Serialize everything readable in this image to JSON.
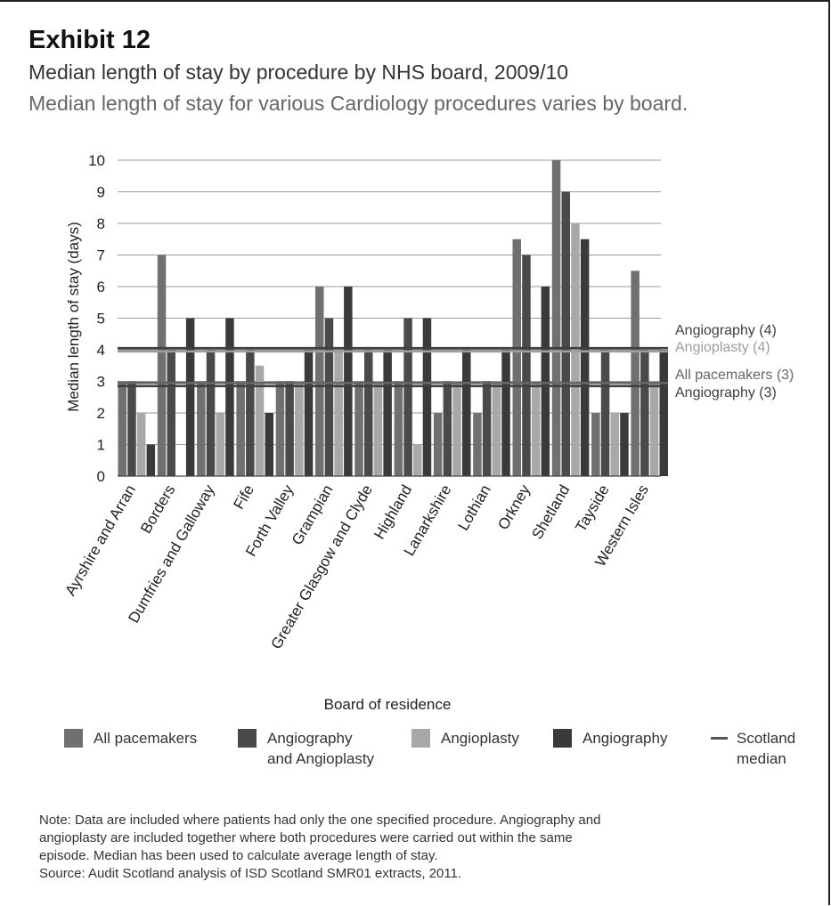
{
  "exhibit_label": "Exhibit 12",
  "title": "Median length of stay by procedure by NHS board, 2009/10",
  "subtitle": "Median length of stay for various Cardiology procedures varies by board.",
  "colors": {
    "all_pacemakers": "#707070",
    "angiography_and_angioplasty": "#4a4a4a",
    "angioplasty": "#a8a8a8",
    "angiography": "#3a3a3a",
    "scotland_median": "#555555",
    "grid": "#9a9a9a"
  },
  "chart_data": {
    "type": "bar",
    "xlabel": "Board of residence",
    "ylabel": "Median length of stay (days)",
    "ylim": [
      0,
      10
    ],
    "yticks": [
      "0",
      "1",
      "2",
      "3",
      "4",
      "5",
      "6",
      "7",
      "8",
      "9",
      "10"
    ],
    "grid": true,
    "legend_position": "bottom",
    "categories": [
      "Ayrshire and Arran",
      "Borders",
      "Dumfries and Galloway",
      "Fife",
      "Forth Valley",
      "Grampian",
      "Greater Glasgow and Clyde",
      "Highland",
      "Lanarkshire",
      "Lothian",
      "Orkney",
      "Shetland",
      "Tayside",
      "Western Isles"
    ],
    "series": [
      {
        "name": "All pacemakers",
        "color_key": "all_pacemakers",
        "values": [
          3,
          7,
          3,
          3,
          3,
          6,
          3,
          3,
          2,
          2,
          7.5,
          10,
          2,
          6.5
        ]
      },
      {
        "name": "Angiography and Angioplasty",
        "color_key": "angiography_and_angioplasty",
        "values": [
          3,
          4,
          4,
          4,
          3,
          5,
          4,
          5,
          3,
          3,
          7,
          9,
          4,
          4
        ]
      },
      {
        "name": "Angioplasty",
        "color_key": "angioplasty",
        "values": [
          2,
          null,
          2,
          3.5,
          3,
          4,
          3,
          1,
          3,
          3,
          3,
          8,
          2,
          3
        ]
      },
      {
        "name": "Angiography",
        "color_key": "angiography",
        "values": [
          1,
          5,
          5,
          2,
          4,
          6,
          4,
          5,
          4,
          4,
          6,
          7.5,
          2,
          4
        ]
      }
    ],
    "reference_lines": [
      {
        "label": "Angiography (4)",
        "value": 4.05,
        "tone": "dark"
      },
      {
        "label": "Angioplasty (4)",
        "value": 3.95,
        "tone": "light"
      },
      {
        "label": "All pacemakers (3)",
        "value": 2.95,
        "tone": "mid"
      },
      {
        "label": "Angiography (3)",
        "value": 2.85,
        "tone": "dark"
      }
    ]
  },
  "legend": {
    "items": [
      {
        "label_lines": [
          "All pacemakers"
        ],
        "color_key": "all_pacemakers",
        "kind": "box"
      },
      {
        "label_lines": [
          "Angiography",
          "and Angioplasty"
        ],
        "color_key": "angiography_and_angioplasty",
        "kind": "box"
      },
      {
        "label_lines": [
          "Angioplasty"
        ],
        "color_key": "angioplasty",
        "kind": "box"
      },
      {
        "label_lines": [
          "Angiography"
        ],
        "color_key": "angiography",
        "kind": "box"
      },
      {
        "label_lines": [
          "Scotland",
          "median"
        ],
        "color_key": "scotland_median",
        "kind": "line"
      }
    ]
  },
  "notes": [
    "Note: Data are included where patients had only the one specified procedure. Angiography and",
    "angioplasty are included together where both procedures were carried out within the same",
    "episode. Median has been used to calculate average length of stay.",
    "Source: Audit Scotland analysis of ISD Scotland SMR01 extracts, 2011."
  ]
}
